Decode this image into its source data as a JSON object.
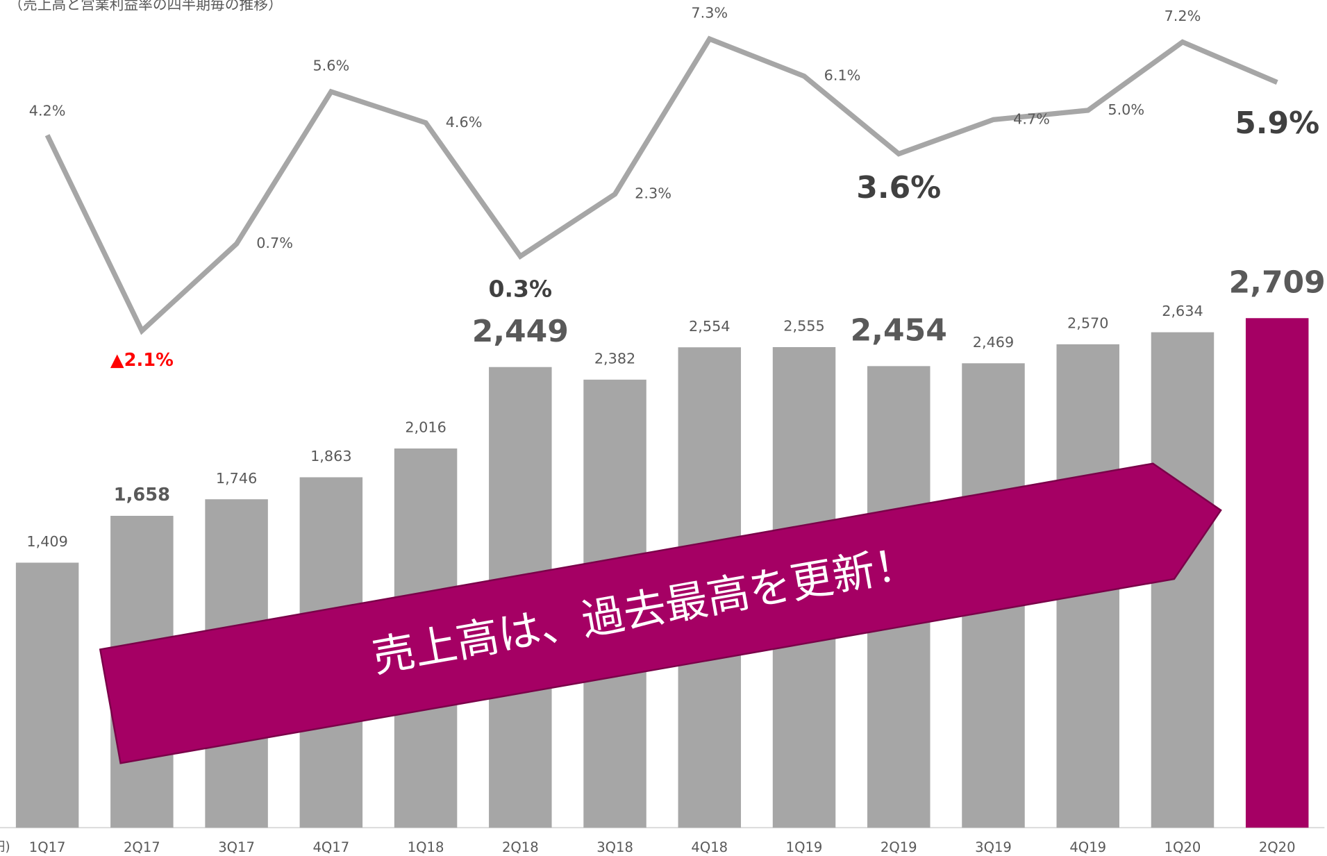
{
  "chart_data": {
    "type": "bar_line",
    "title": "（売上高と営業利益率の四半期毎の推移）",
    "unit_label": "(百万円)",
    "annotation": "売上高は、過去最高を更新！",
    "categories": [
      "1Q17",
      "2Q17",
      "3Q17",
      "4Q17",
      "1Q18",
      "2Q18",
      "3Q18",
      "4Q18",
      "1Q19",
      "2Q19",
      "3Q19",
      "4Q19",
      "1Q20",
      "2Q20"
    ],
    "ylim": [
      0,
      4400
    ],
    "y2lim": [
      -18.1,
      8.55
    ],
    "series": [
      {
        "name": "売上高",
        "type": "bar",
        "color": "#a6a6a6",
        "colors": [
          "#a6a6a6",
          "#a6a6a6",
          "#a6a6a6",
          "#a6a6a6",
          "#a6a6a6",
          "#a6a6a6",
          "#a6a6a6",
          "#a6a6a6",
          "#a6a6a6",
          "#a6a6a6",
          "#a6a6a6",
          "#a6a6a6",
          "#a6a6a6",
          "#a50064"
        ],
        "values": [
          1409,
          1658,
          1746,
          1863,
          2016,
          2449,
          2382,
          2554,
          2555,
          2454,
          2469,
          2570,
          2634,
          2709
        ],
        "value_labels": [
          "1,409",
          "1,658",
          "1,746",
          "1,863",
          "2,016",
          "2,449",
          "2,382",
          "2,554",
          "2,555",
          "2,454",
          "2,469",
          "2,570",
          "2,634",
          "2,709"
        ],
        "emphasis": [
          1,
          5,
          9,
          13
        ]
      },
      {
        "name": "営業利益率",
        "type": "line",
        "axis": "y2",
        "color": "#a6a6a6",
        "values": [
          4.2,
          -2.1,
          0.7,
          5.6,
          4.6,
          0.3,
          2.3,
          7.3,
          6.1,
          3.6,
          4.7,
          5.0,
          7.2,
          5.9
        ],
        "value_labels": [
          "4.2%",
          "▲2.1%",
          "0.7%",
          "5.6%",
          "4.6%",
          "0.3%",
          "2.3%",
          "7.3%",
          "6.1%",
          "3.6%",
          "4.7%",
          "5.0%",
          "7.2%",
          "5.9%"
        ],
        "emphasis": [
          1,
          5,
          9,
          13
        ],
        "negative_color": "#ff0000"
      }
    ]
  }
}
